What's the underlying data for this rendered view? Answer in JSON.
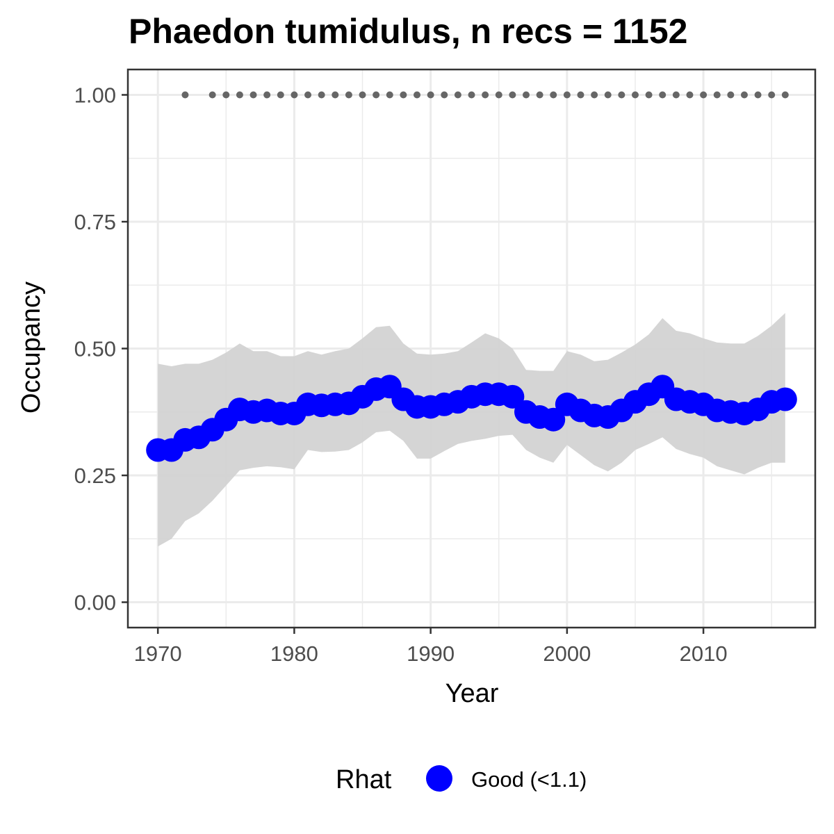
{
  "chart_data": {
    "type": "line",
    "title": "Phaedon tumidulus, n recs = 1152",
    "xlabel": "Year",
    "ylabel": "Occupancy",
    "xlim": [
      1967.8,
      2018.2
    ],
    "ylim": [
      -0.05,
      1.05
    ],
    "x_ticks": [
      1970,
      1980,
      1990,
      2000,
      2010
    ],
    "x_tick_labels": [
      "1970",
      "1980",
      "1990",
      "2000",
      "2010"
    ],
    "y_ticks": [
      0.0,
      0.25,
      0.5,
      0.75,
      1.0
    ],
    "y_tick_labels": [
      "0.00",
      "0.25",
      "0.50",
      "0.75",
      "1.00"
    ],
    "grid": true,
    "legend": {
      "title": "Rhat",
      "position": "bottom",
      "entries": [
        {
          "label": "Good (<1.1)",
          "color": "#0000ff"
        }
      ]
    },
    "colors": {
      "line": "#0000ff",
      "ribbon": "#d3d3d3",
      "records": "#666666",
      "grid": "#ebebeb",
      "panel_border": "#333333"
    },
    "x": [
      1970,
      1971,
      1972,
      1973,
      1974,
      1975,
      1976,
      1977,
      1978,
      1979,
      1980,
      1981,
      1982,
      1983,
      1984,
      1985,
      1986,
      1987,
      1988,
      1989,
      1990,
      1991,
      1992,
      1993,
      1994,
      1995,
      1996,
      1997,
      1998,
      1999,
      2000,
      2001,
      2002,
      2003,
      2004,
      2005,
      2006,
      2007,
      2008,
      2009,
      2010,
      2011,
      2012,
      2013,
      2014,
      2015,
      2016
    ],
    "series": [
      {
        "name": "Good (<1.1)",
        "values": [
          0.3,
          0.3,
          0.32,
          0.325,
          0.34,
          0.36,
          0.38,
          0.375,
          0.378,
          0.372,
          0.372,
          0.39,
          0.388,
          0.39,
          0.392,
          0.405,
          0.42,
          0.425,
          0.4,
          0.385,
          0.385,
          0.39,
          0.395,
          0.405,
          0.41,
          0.41,
          0.405,
          0.375,
          0.365,
          0.36,
          0.39,
          0.378,
          0.368,
          0.365,
          0.378,
          0.395,
          0.41,
          0.425,
          0.4,
          0.395,
          0.39,
          0.378,
          0.375,
          0.372,
          0.38,
          0.395,
          0.4
        ],
        "lower": [
          0.11,
          0.125,
          0.16,
          0.175,
          0.2,
          0.23,
          0.26,
          0.265,
          0.268,
          0.266,
          0.262,
          0.3,
          0.296,
          0.297,
          0.3,
          0.315,
          0.335,
          0.338,
          0.318,
          0.283,
          0.283,
          0.298,
          0.312,
          0.318,
          0.322,
          0.328,
          0.33,
          0.3,
          0.285,
          0.275,
          0.31,
          0.29,
          0.27,
          0.258,
          0.275,
          0.3,
          0.312,
          0.325,
          0.302,
          0.292,
          0.285,
          0.268,
          0.26,
          0.252,
          0.265,
          0.275,
          0.275
        ],
        "upper": [
          0.47,
          0.465,
          0.47,
          0.47,
          0.478,
          0.492,
          0.51,
          0.495,
          0.495,
          0.485,
          0.485,
          0.495,
          0.488,
          0.495,
          0.5,
          0.52,
          0.542,
          0.545,
          0.51,
          0.49,
          0.488,
          0.49,
          0.495,
          0.512,
          0.53,
          0.52,
          0.5,
          0.458,
          0.456,
          0.456,
          0.495,
          0.488,
          0.475,
          0.478,
          0.492,
          0.508,
          0.528,
          0.56,
          0.535,
          0.53,
          0.52,
          0.512,
          0.51,
          0.51,
          0.525,
          0.545,
          0.57
        ]
      }
    ],
    "record_years": [
      1972,
      1974,
      1975,
      1976,
      1977,
      1978,
      1979,
      1980,
      1981,
      1982,
      1983,
      1984,
      1985,
      1986,
      1987,
      1988,
      1989,
      1990,
      1991,
      1992,
      1993,
      1994,
      1995,
      1996,
      1997,
      1998,
      1999,
      2000,
      2001,
      2002,
      2003,
      2004,
      2005,
      2006,
      2007,
      2008,
      2009,
      2010,
      2011,
      2012,
      2013,
      2014,
      2015,
      2016
    ],
    "record_value": 1.0
  }
}
